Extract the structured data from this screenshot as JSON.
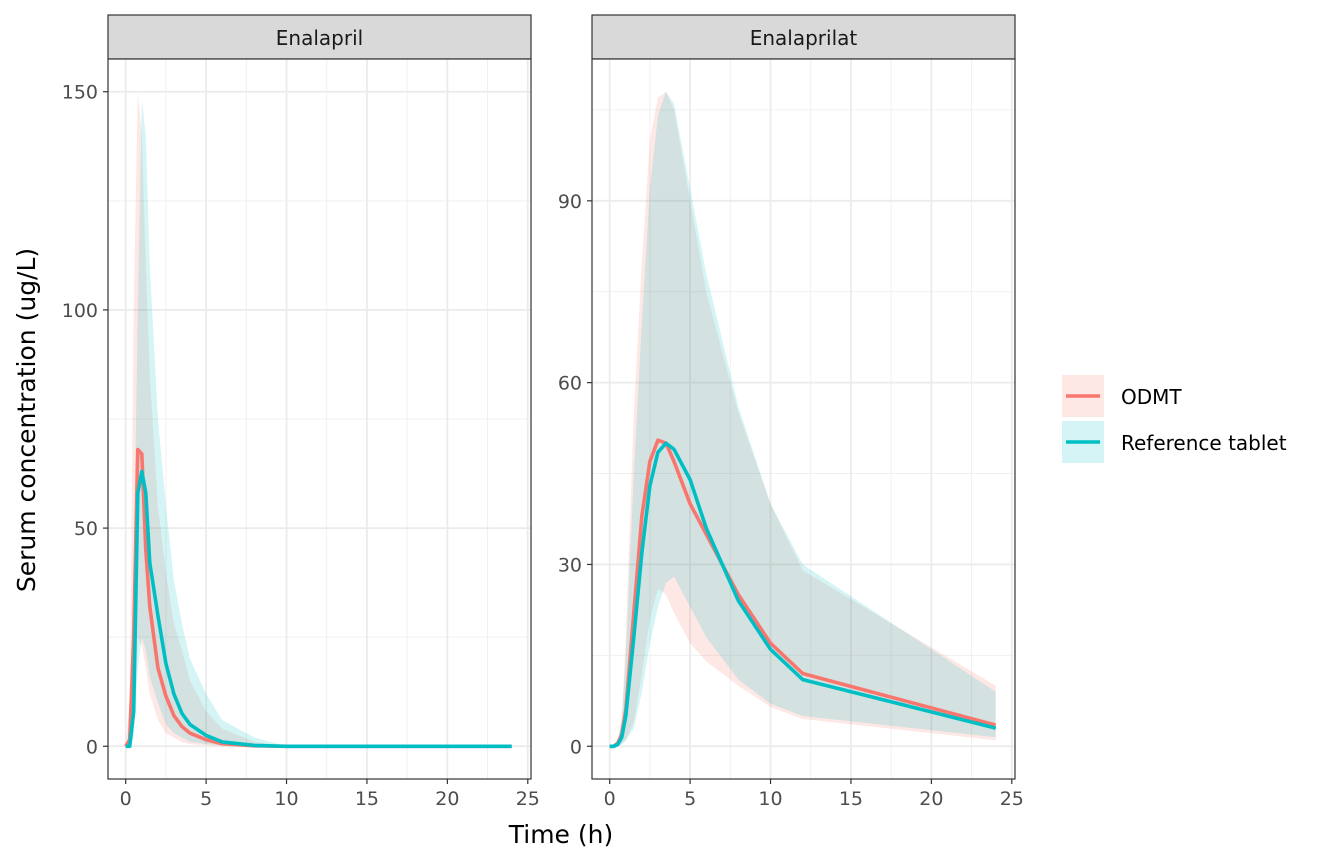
{
  "chart_data": {
    "type": "line",
    "xlabel": "Time (h)",
    "ylabel": "Serum concentration (ug/L)",
    "grid": true,
    "legend_position": "right",
    "colors": {
      "ODMT": "#F8766D",
      "Reference tablet": "#00BFC4"
    },
    "series_names": [
      "ODMT",
      "Reference tablet"
    ],
    "panels": [
      {
        "title": "Enalapril",
        "xlim": [
          -1.1,
          25.2
        ],
        "ylim": [
          -7.5,
          157.5
        ],
        "x_ticks": [
          0,
          5,
          10,
          15,
          20,
          25
        ],
        "y_ticks": [
          0,
          50,
          100,
          150
        ],
        "series": [
          {
            "name": "ODMT",
            "x": [
              0,
              0.25,
              0.5,
              0.75,
              1,
              1.25,
              1.5,
              2,
              2.5,
              3,
              3.5,
              4,
              5,
              6,
              8,
              10,
              12,
              24
            ],
            "y": [
              0,
              1.5,
              25,
              68,
              67,
              45,
              32,
              18,
              11.5,
              7,
              4.5,
              3,
              1.5,
              0.6,
              0.1,
              0,
              0,
              0
            ],
            "lower": [
              0,
              0,
              5,
              25,
              23,
              18,
              12,
              6,
              3,
              2,
              1,
              0.5,
              0.2,
              0,
              0,
              0,
              0,
              0
            ],
            "upper": [
              0,
              10,
              100,
              150,
              140,
              110,
              85,
              55,
              40,
              28,
              22,
              15,
              8,
              4,
              1,
              0,
              0,
              0
            ]
          },
          {
            "name": "Reference tablet",
            "x": [
              0,
              0.25,
              0.5,
              0.75,
              1,
              1.25,
              1.5,
              2,
              2.5,
              3,
              3.5,
              4,
              5,
              6,
              8,
              10,
              12,
              24
            ],
            "y": [
              0,
              0,
              8,
              58,
              63,
              58,
              42,
              30,
              19,
              12,
              7.5,
              5,
              2.5,
              1,
              0.2,
              0,
              0,
              0
            ],
            "lower": [
              0,
              0,
              2,
              18,
              25,
              22,
              16,
              10,
              5,
              3,
              2,
              1,
              0.5,
              0.2,
              0,
              0,
              0,
              0
            ],
            "upper": [
              0,
              3,
              40,
              100,
              148,
              140,
              110,
              75,
              55,
              38,
              28,
              20,
              12,
              6,
              2,
              0,
              0,
              0
            ]
          }
        ]
      },
      {
        "title": "Enalaprilat",
        "xlim": [
          -1.1,
          25.2
        ],
        "ylim": [
          -5.4,
          113.4
        ],
        "x_ticks": [
          0,
          5,
          10,
          15,
          20,
          25
        ],
        "y_ticks": [
          0,
          30,
          60,
          90
        ],
        "series": [
          {
            "name": "ODMT",
            "x": [
              0,
              0.25,
              0.5,
              0.75,
              1,
              1.5,
              2,
              2.5,
              3,
              3.5,
              4,
              5,
              6,
              8,
              10,
              12,
              24
            ],
            "y": [
              0,
              0,
              0.5,
              2,
              6,
              22,
              38,
              47,
              50.5,
              50,
              47,
              40,
              35,
              25,
              17,
              12,
              3.5
            ],
            "lower": [
              0,
              0,
              0,
              0.5,
              1,
              4,
              12,
              21,
              26,
              25,
              22,
              17,
              14,
              10,
              6.5,
              4.5,
              1
            ],
            "upper": [
              0,
              0,
              1,
              5,
              18,
              55,
              80,
              100,
              107,
              108,
              105,
              90,
              75,
              55,
              40,
              29,
              10
            ]
          },
          {
            "name": "Reference tablet",
            "x": [
              0,
              0.25,
              0.5,
              0.75,
              1,
              1.5,
              2,
              2.5,
              3,
              3.5,
              4,
              5,
              6,
              8,
              10,
              12,
              24
            ],
            "y": [
              0,
              0,
              0.3,
              1.5,
              5,
              18,
              32,
              43,
              48.5,
              50,
              49,
              44,
              36,
              24,
              16,
              11,
              3
            ],
            "lower": [
              0,
              0,
              0,
              0.3,
              1,
              3,
              9,
              17,
              23,
              27,
              28,
              23,
              18,
              11,
              7,
              5,
              1.5
            ],
            "upper": [
              0,
              0,
              1,
              4,
              15,
              45,
              70,
              92,
              104,
              108,
              106,
              92,
              78,
              56,
              40,
              30,
              9
            ]
          }
        ]
      }
    ]
  }
}
